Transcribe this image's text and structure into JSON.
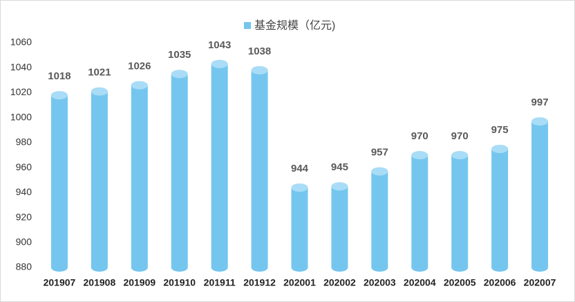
{
  "chart_data": {
    "type": "bar",
    "legend": "基金规模（亿元)",
    "categories": [
      "201907",
      "201908",
      "201909",
      "201910",
      "201911",
      "201912",
      "202001",
      "202002",
      "202003",
      "202004",
      "202005",
      "202006",
      "202007"
    ],
    "values": [
      1018,
      1021,
      1026,
      1035,
      1043,
      1038,
      944,
      945,
      957,
      970,
      970,
      975,
      997
    ],
    "color": "#75c6ef",
    "ylim": [
      880,
      1060
    ],
    "yticks": [
      880,
      900,
      920,
      940,
      960,
      980,
      1000,
      1020,
      1040,
      1060
    ],
    "grid": false
  }
}
